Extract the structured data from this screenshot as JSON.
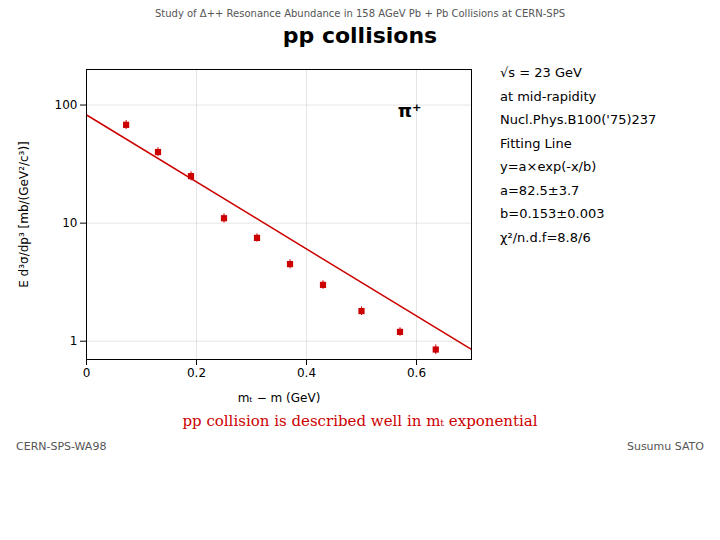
{
  "chart_data": {
    "type": "scatter",
    "subtitle": "Study of Δ++ Resonance Abundance in 158 AGeV Pb + Pb  Collisions at CERN-SPS",
    "title": "pp collisions",
    "x_label": "mₜ − m (GeV)",
    "y_label": "E d³σ/dp³ [mb/(GeV²/c³)]",
    "log": "y",
    "grid": true,
    "xlim": [
      0,
      0.7
    ],
    "ylim": [
      0.7,
      200
    ],
    "xticks": [
      0,
      0.2,
      0.4,
      0.6
    ],
    "yticks": [
      1,
      10,
      100
    ],
    "series": [
      {
        "type": "scatter",
        "marker": "square",
        "color": "#cc0000",
        "x": [
          0.072,
          0.13,
          0.19,
          0.25,
          0.31,
          0.37,
          0.43,
          0.5,
          0.57,
          0.635
        ],
        "values": [
          68.0,
          40.0,
          25.0,
          11.0,
          7.5,
          4.5,
          3.0,
          1.8,
          1.2,
          0.85
        ],
        "errors": [
          6.0,
          3.5,
          2.2,
          1.0,
          0.6,
          0.4,
          0.25,
          0.15,
          0.1,
          0.08
        ]
      },
      {
        "type": "line",
        "line_style": "solid",
        "color": "#cc0000",
        "x": [
          0.001,
          0.7
        ],
        "values": [
          81.9625,
          0.8501
        ]
      }
    ],
    "plot_annotation": "π⁺",
    "annotations": [
      "√s = 23 GeV",
      "at mid-rapidity",
      "Nucl.Phys.B100('75)237",
      "Fitting Line",
      "y=a×exp(-x/b)",
      "a=82.5±3.7",
      "b=0.153±0.003",
      "χ²/n.d.f=8.8/6"
    ],
    "statement": "pp collision is described well in mₜ exponential",
    "footer": [
      "CERN-SPS-WA98",
      "Susumu  SATO"
    ]
  }
}
